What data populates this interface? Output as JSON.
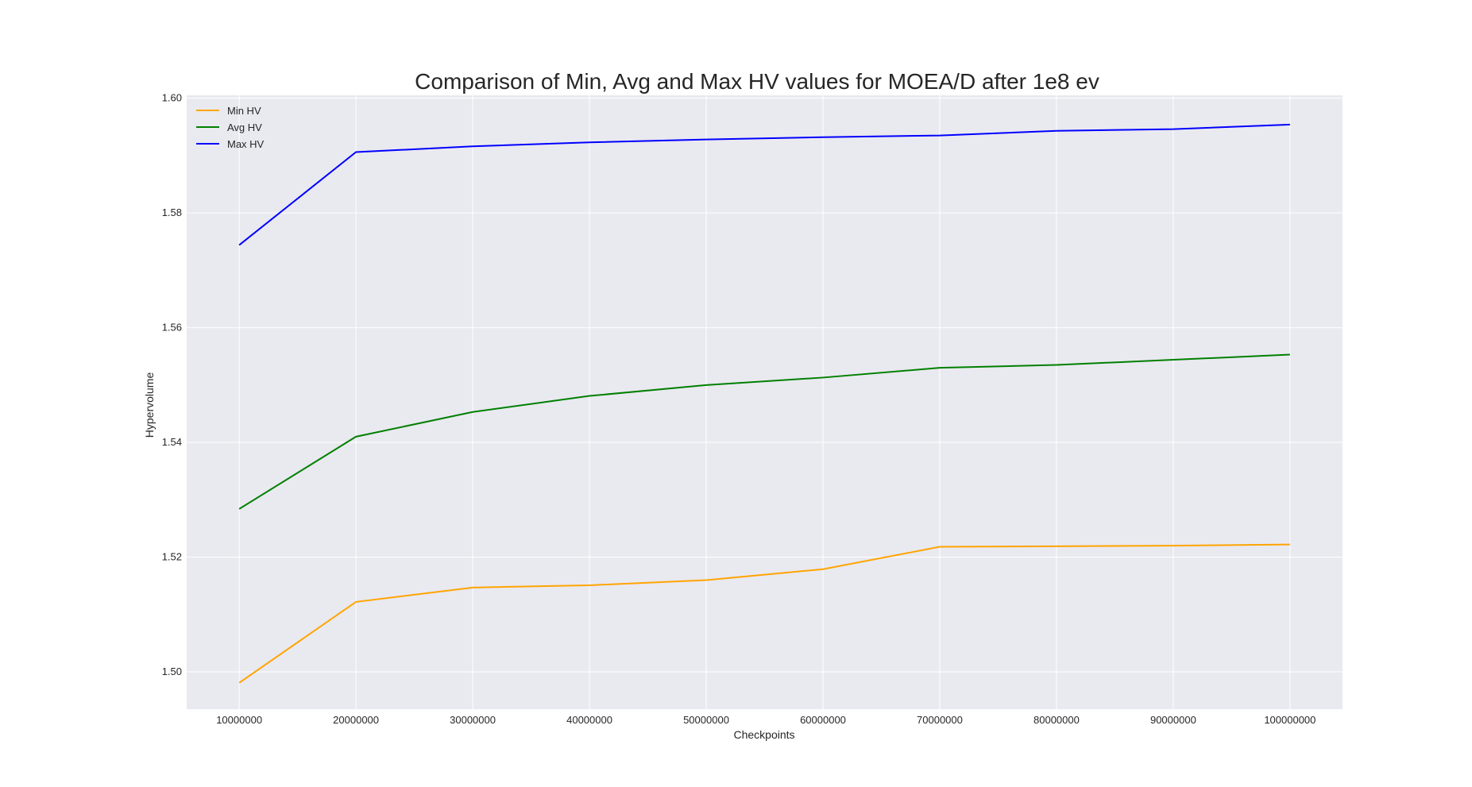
{
  "chart_data": {
    "type": "line",
    "title": "Comparison of Min, Avg and Max HV values for MOEA/D after 1e8 ev",
    "xlabel": "Checkpoints",
    "ylabel": "Hypervolume",
    "x": [
      10000000,
      20000000,
      30000000,
      40000000,
      50000000,
      60000000,
      70000000,
      80000000,
      90000000,
      100000000
    ],
    "x_tick_labels": [
      "10000000",
      "20000000",
      "30000000",
      "40000000",
      "50000000",
      "60000000",
      "70000000",
      "80000000",
      "90000000",
      "100000000"
    ],
    "y_ticks": [
      1.5,
      1.52,
      1.54,
      1.56,
      1.58,
      1.6
    ],
    "y_tick_labels": [
      "1.50",
      "1.52",
      "1.54",
      "1.56",
      "1.58",
      "1.60"
    ],
    "ylim": [
      1.4935,
      1.6005
    ],
    "xlim": [
      5500000,
      104500000
    ],
    "grid": true,
    "background": "#e9e9f0",
    "legend_position": "top-left",
    "series": [
      {
        "name": "Min HV",
        "color": "#ffa500",
        "values": [
          1.4981,
          1.5122,
          1.5147,
          1.5151,
          1.516,
          1.5179,
          1.5218,
          1.5219,
          1.522,
          1.5222
        ]
      },
      {
        "name": "Avg HV",
        "color": "#008000",
        "values": [
          1.5284,
          1.541,
          1.5453,
          1.5481,
          1.55,
          1.5513,
          1.553,
          1.5535,
          1.5544,
          1.5553
        ]
      },
      {
        "name": "Max HV",
        "color": "#0000ff",
        "values": [
          1.5744,
          1.5906,
          1.5916,
          1.5923,
          1.5928,
          1.5932,
          1.5935,
          1.5943,
          1.5946,
          1.5954
        ]
      }
    ]
  }
}
